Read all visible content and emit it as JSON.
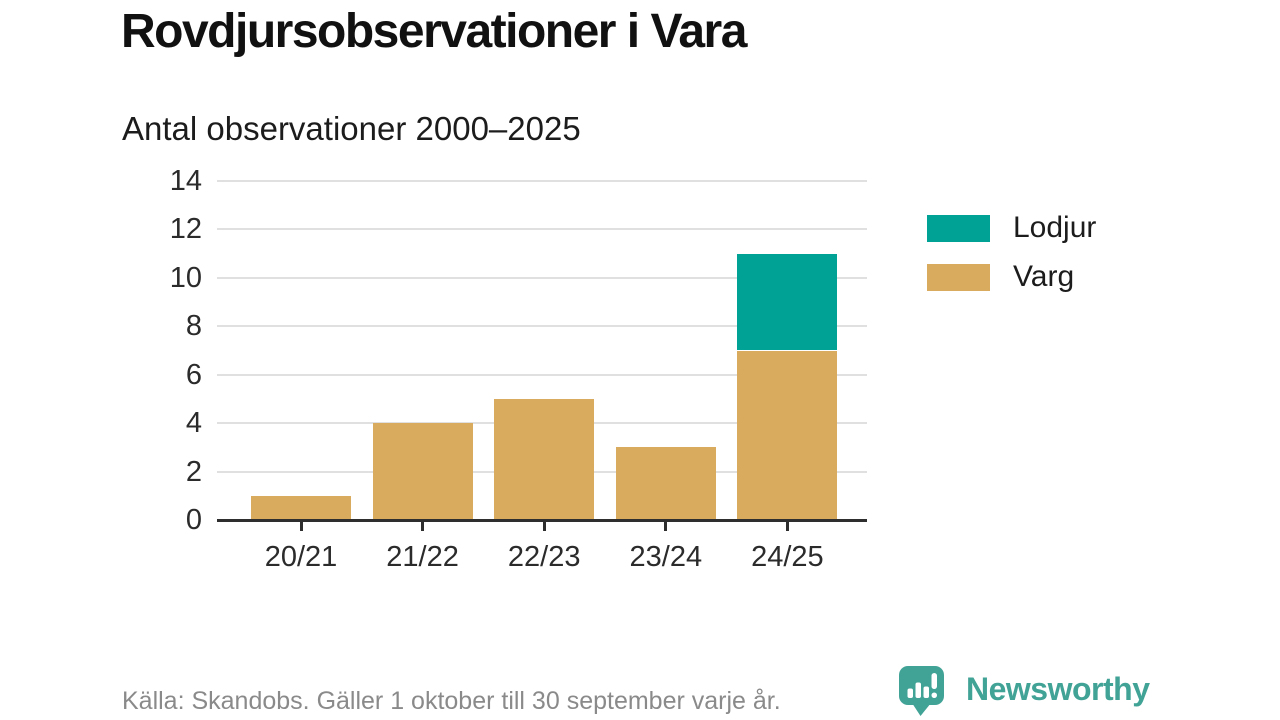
{
  "page": {
    "title": "Rovdjursobservationer i Vara",
    "subtitle": "Antal observationer 2000–2025",
    "source": "Källa: Skandobs. Gäller 1 oktober till 30 september varje år.",
    "brand_name": "Newsworthy"
  },
  "colors": {
    "lodjur": "#00a296",
    "varg": "#d9ab5e",
    "gridline": "#e0e0e0",
    "axis": "#2e2e2e",
    "tick_text": "#2b2b2b",
    "muted_text": "#8a8a8a",
    "brand_teal": "#41a296"
  },
  "legend": {
    "items": [
      {
        "label": "Lodjur",
        "color": "#00a296"
      },
      {
        "label": "Varg",
        "color": "#d9ab5e"
      }
    ]
  },
  "chart_data": {
    "type": "bar",
    "stacked": true,
    "title": "Rovdjursobservationer i Vara",
    "subtitle": "Antal observationer 2000–2025",
    "categories": [
      "20/21",
      "21/22",
      "22/23",
      "23/24",
      "24/25"
    ],
    "series": [
      {
        "name": "Lodjur",
        "color": "#00a296",
        "values": [
          0,
          0,
          0,
          0,
          4
        ]
      },
      {
        "name": "Varg",
        "color": "#d9ab5e",
        "values": [
          1,
          4,
          5,
          3,
          7
        ]
      }
    ],
    "totals": [
      1,
      4,
      5,
      3,
      11
    ],
    "xlabel": "",
    "ylabel": "",
    "ylim": [
      0,
      14
    ],
    "y_ticks": [
      0,
      2,
      4,
      6,
      8,
      10,
      12,
      14
    ],
    "grid": "horizontal",
    "legend_position": "right",
    "source": "Källa: Skandobs. Gäller 1 oktober till 30 september varje år."
  }
}
